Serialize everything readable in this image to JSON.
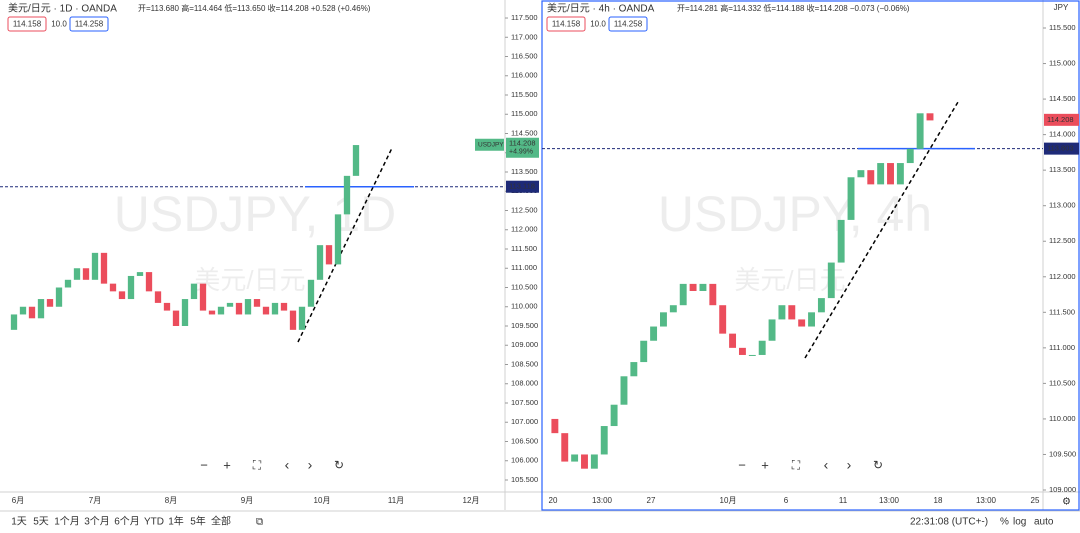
{
  "chart_data": [
    {
      "type": "candlestick",
      "title": "美元/日元 · 1D · OANDA",
      "ohlc": "开=113.680 高=114.464 低=113.650 收=114.208 +0.528 (+0.46%)",
      "sell": "114.158",
      "spread": "10.0",
      "buy": "114.258",
      "watermark": "USDJPY, 1D",
      "watermark_sub": "美元/日元",
      "colors": {
        "up": "#53b987",
        "down": "#eb4d5c"
      },
      "values": [
        109.4,
        109.8,
        110.0,
        109.7,
        110.2,
        110.0,
        110.5,
        110.7,
        111.0,
        110.7,
        111.4,
        110.6,
        110.4,
        110.2,
        110.8,
        110.9,
        110.4,
        110.1,
        109.9,
        109.5,
        110.2,
        110.6,
        109.9,
        109.8,
        110.0,
        110.1,
        109.8,
        110.2,
        110.0,
        109.8,
        110.1,
        109.9,
        109.4,
        110.0,
        110.7,
        111.6,
        111.1,
        112.4,
        113.4,
        114.2
      ],
      "ylim": [
        105.188,
        117.968
      ],
      "yticks": [
        {
          "value": 105.5,
          "label": "105.500"
        },
        {
          "value": 106,
          "label": "106.000"
        },
        {
          "value": 106.5,
          "label": "106.500"
        },
        {
          "value": 107,
          "label": "107.000"
        },
        {
          "value": 107.5,
          "label": "107.500"
        },
        {
          "value": 108,
          "label": "108.000"
        },
        {
          "value": 108.5,
          "label": "108.500"
        },
        {
          "value": 109,
          "label": "109.000"
        },
        {
          "value": 109.5,
          "label": "109.500"
        },
        {
          "value": 110,
          "label": "110.000"
        },
        {
          "value": 110.5,
          "label": "110.500"
        },
        {
          "value": 111,
          "label": "111.000"
        },
        {
          "value": 111.5,
          "label": "111.500"
        },
        {
          "value": 112,
          "label": "112.000"
        },
        {
          "value": 112.5,
          "label": "112.500"
        },
        {
          "value": 113,
          "label": "113.000"
        },
        {
          "value": 113.5,
          "label": "113.500"
        },
        {
          "value": 114,
          "label": "114.000"
        },
        {
          "value": 114.5,
          "label": "114.500"
        },
        {
          "value": 115,
          "label": "115.000"
        },
        {
          "value": 115.5,
          "label": "115.500"
        },
        {
          "value": 116,
          "label": "116.000"
        },
        {
          "value": 116.5,
          "label": "116.500"
        },
        {
          "value": 117,
          "label": "117.000"
        },
        {
          "value": 117.5,
          "label": "117.500"
        }
      ],
      "x_labels": [
        "6月",
        "7月",
        "8月",
        "9月",
        "10月",
        "11月",
        "12月"
      ],
      "last": {
        "value": 114.208,
        "label": "114.208",
        "symbol": "USDJPY",
        "change": "+4.99%"
      },
      "price_line": {
        "value": 113.118,
        "label": "113.118"
      }
    },
    {
      "type": "candlestick",
      "title": "美元/日元 · 4h · OANDA",
      "ohlc": "开=114.281 高=114.332 低=114.188 收=114.208 −0.073 (−0.06%)",
      "sell": "114.158",
      "spread": "10.0",
      "buy": "114.258",
      "watermark": "USDJPY, 4h",
      "watermark_sub": "美元/日元",
      "unit": "JPY",
      "colors": {
        "up": "#53b987",
        "down": "#eb4d5c"
      },
      "values": [
        110.0,
        109.8,
        109.4,
        109.5,
        109.3,
        109.5,
        109.9,
        110.2,
        110.6,
        110.8,
        111.1,
        111.3,
        111.5,
        111.6,
        111.9,
        111.8,
        111.9,
        111.6,
        111.2,
        111.0,
        110.9,
        110.9,
        111.1,
        111.4,
        111.6,
        111.4,
        111.3,
        111.5,
        111.7,
        112.2,
        112.8,
        113.4,
        113.5,
        113.3,
        113.6,
        113.3,
        113.6,
        113.8,
        114.3,
        114.2
      ],
      "ylim": [
        108.972,
        115.894
      ],
      "yticks": [
        {
          "value": 109,
          "label": "109.000"
        },
        {
          "value": 109.5,
          "label": "109.500"
        },
        {
          "value": 110,
          "label": "110.000"
        },
        {
          "value": 110.5,
          "label": "110.500"
        },
        {
          "value": 111,
          "label": "111.000"
        },
        {
          "value": 111.5,
          "label": "111.500"
        },
        {
          "value": 112,
          "label": "112.000"
        },
        {
          "value": 112.5,
          "label": "112.500"
        },
        {
          "value": 113,
          "label": "113.000"
        },
        {
          "value": 113.5,
          "label": "113.500"
        },
        {
          "value": 114,
          "label": "114.000"
        },
        {
          "value": 114.5,
          "label": "114.500"
        },
        {
          "value": 115,
          "label": "115.000"
        },
        {
          "value": 115.5,
          "label": "115.500"
        }
      ],
      "x_labels": [
        "20",
        "13:00",
        "27",
        "10月",
        "6",
        "11",
        "13:00",
        "18",
        "13:00",
        "25"
      ],
      "last": {
        "value": 114.208,
        "label": "114.208"
      },
      "price_line": {
        "value": 113.803,
        "label": "113.803"
      }
    }
  ],
  "toolbar": {
    "ranges": [
      "1天",
      "5天",
      "1个月",
      "3个月",
      "6个月",
      "YTD",
      "1年",
      "5年",
      "全部"
    ],
    "time": "22:31:08 (UTC+-)",
    "percent": "%",
    "log": "log",
    "auto": "auto"
  }
}
